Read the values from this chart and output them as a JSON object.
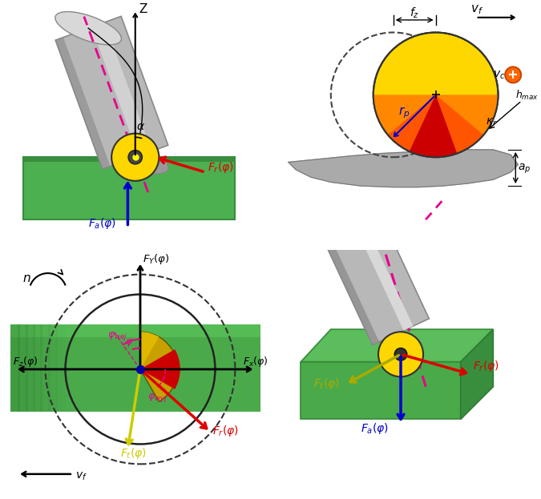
{
  "bg_color": "#ffffff",
  "green_top": "#5cb85c",
  "green_mid": "#4caf50",
  "green_dark": "#388e3c",
  "green_side": "#2e7d32",
  "yellow_insert": "#ffd700",
  "orange_grad": "#ff8800",
  "red_chip": "#cc0000",
  "gray_cyl": "#b8b8b8",
  "gray_light": "#d8d8d8",
  "gray_dark": "#888888",
  "gray_workpiece": "#aaaaaa",
  "magenta": "#e8008c",
  "arrow_red": "#dd0000",
  "arrow_blue": "#0000cc",
  "arrow_yellow": "#cccc00",
  "black": "#000000",
  "orange_symbol": "#ff6600"
}
